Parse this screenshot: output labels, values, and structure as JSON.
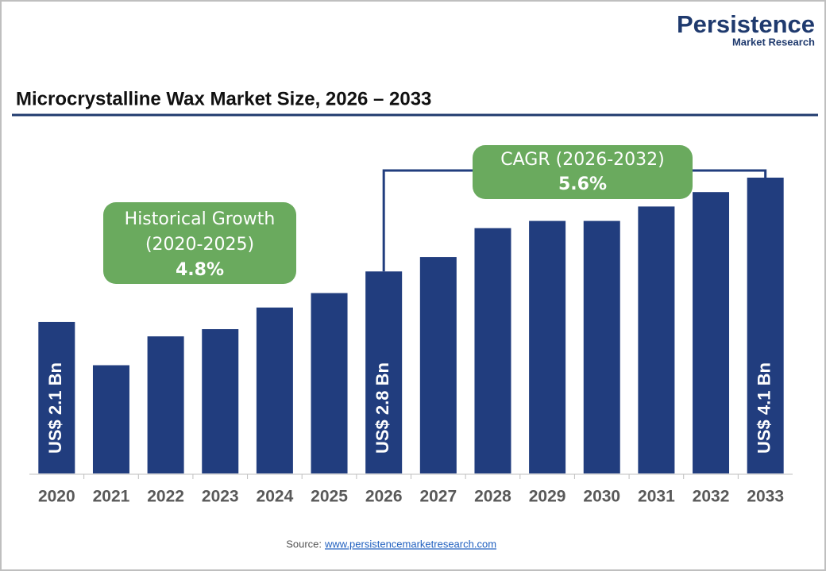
{
  "brand": {
    "name": "Persistence",
    "tagline": "Market Research"
  },
  "chart_data": {
    "type": "bar",
    "title": "Microcrystalline Wax Market Size, 2026 – 2033",
    "categories": [
      "2020",
      "2021",
      "2022",
      "2023",
      "2024",
      "2025",
      "2026",
      "2027",
      "2028",
      "2029",
      "2030",
      "2031",
      "2032",
      "2033"
    ],
    "values": [
      2.1,
      1.5,
      1.9,
      2.0,
      2.3,
      2.5,
      2.8,
      3.0,
      3.4,
      3.5,
      3.5,
      3.7,
      3.9,
      4.1
    ],
    "value_labels": [
      "US$ 2.1 Bn",
      null,
      null,
      null,
      null,
      null,
      "US$ 2.8 Bn",
      null,
      null,
      null,
      null,
      null,
      null,
      "US$ 4.1 Bn"
    ],
    "color": "#213d7e",
    "annotations": [
      {
        "lines": [
          "Historical Growth",
          "(2020-2025)",
          "4.8%"
        ],
        "color": "#6aaa5e"
      },
      {
        "lines": [
          "CAGR (2026-2032)",
          "5.6%"
        ],
        "color": "#6aaa5e"
      }
    ]
  },
  "source": {
    "label": "Source:",
    "link": "www.persistencemarketresearch.com"
  }
}
